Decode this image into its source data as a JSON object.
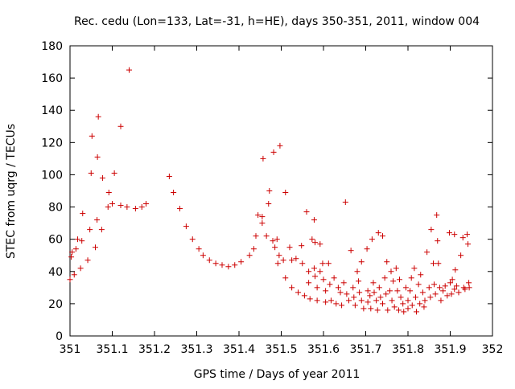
{
  "chart_data": {
    "type": "scatter",
    "title": "Rec. cedu (Lon=133, Lat=-31, h=HE), days 350-351, 2011, window 004",
    "xlabel": "GPS time / Days of year 2011",
    "ylabel": "STEC from uqrg / TECUs",
    "xlim": [
      351,
      352
    ],
    "ylim": [
      0,
      180
    ],
    "x_ticks": [
      "351",
      "351.1",
      "351.2",
      "351.3",
      "351.4",
      "351.5",
      "351.6",
      "351.7",
      "351.8",
      "351.9",
      "352"
    ],
    "y_ticks": [
      "0",
      "20",
      "40",
      "60",
      "80",
      "100",
      "120",
      "140",
      "160",
      "180"
    ],
    "grid": false,
    "legend": "none",
    "marker": "+",
    "color": "#cc0000",
    "series": [
      {
        "points": [
          [
            351.0,
            35
          ],
          [
            351.003,
            49
          ],
          [
            351.005,
            52
          ],
          [
            351.01,
            38
          ],
          [
            351.014,
            54
          ],
          [
            351.018,
            60
          ],
          [
            351.025,
            42
          ],
          [
            351.028,
            59
          ],
          [
            351.03,
            76
          ],
          [
            351.042,
            47
          ],
          [
            351.047,
            66
          ],
          [
            351.05,
            101
          ],
          [
            351.052,
            124
          ],
          [
            351.06,
            55
          ],
          [
            351.064,
            72
          ],
          [
            351.065,
            111
          ],
          [
            351.067,
            136
          ],
          [
            351.075,
            66
          ],
          [
            351.077,
            98
          ],
          [
            351.09,
            80
          ],
          [
            351.092,
            89
          ],
          [
            351.1,
            82
          ],
          [
            351.105,
            101
          ],
          [
            351.12,
            130
          ],
          [
            351.12,
            81
          ],
          [
            351.135,
            80
          ],
          [
            351.14,
            165
          ],
          [
            351.155,
            79
          ],
          [
            351.17,
            80
          ],
          [
            351.18,
            82
          ],
          [
            351.235,
            99
          ],
          [
            351.245,
            89
          ],
          [
            351.26,
            79
          ],
          [
            351.275,
            68
          ],
          [
            351.29,
            60
          ],
          [
            351.305,
            54
          ],
          [
            351.315,
            50
          ],
          [
            351.33,
            47
          ],
          [
            351.345,
            45
          ],
          [
            351.36,
            44
          ],
          [
            351.375,
            43
          ],
          [
            351.39,
            44
          ],
          [
            351.405,
            46
          ],
          [
            351.425,
            50
          ],
          [
            351.435,
            54
          ],
          [
            351.44,
            62
          ],
          [
            351.445,
            75
          ],
          [
            351.455,
            74
          ],
          [
            351.455,
            70
          ],
          [
            351.457,
            110
          ],
          [
            351.465,
            62
          ],
          [
            351.47,
            82
          ],
          [
            351.472,
            90
          ],
          [
            351.48,
            59
          ],
          [
            351.482,
            114
          ],
          [
            351.485,
            55
          ],
          [
            351.49,
            60
          ],
          [
            351.492,
            45
          ],
          [
            351.495,
            50
          ],
          [
            351.497,
            118
          ],
          [
            351.505,
            47
          ],
          [
            351.51,
            89
          ],
          [
            351.51,
            36
          ],
          [
            351.52,
            55
          ],
          [
            351.525,
            47
          ],
          [
            351.525,
            30
          ],
          [
            351.535,
            48
          ],
          [
            351.54,
            27
          ],
          [
            351.548,
            56
          ],
          [
            351.55,
            45
          ],
          [
            351.555,
            25
          ],
          [
            351.56,
            77
          ],
          [
            351.565,
            40
          ],
          [
            351.565,
            33
          ],
          [
            351.568,
            23
          ],
          [
            351.573,
            60
          ],
          [
            351.578,
            72
          ],
          [
            351.578,
            42
          ],
          [
            351.58,
            58
          ],
          [
            351.58,
            37
          ],
          [
            351.585,
            30
          ],
          [
            351.585,
            22
          ],
          [
            351.592,
            57
          ],
          [
            351.592,
            40
          ],
          [
            351.598,
            45
          ],
          [
            351.6,
            35
          ],
          [
            351.605,
            28
          ],
          [
            351.605,
            21
          ],
          [
            351.612,
            45
          ],
          [
            351.615,
            32
          ],
          [
            351.618,
            22
          ],
          [
            351.625,
            36
          ],
          [
            351.63,
            20
          ],
          [
            351.635,
            30
          ],
          [
            351.64,
            27
          ],
          [
            351.643,
            19
          ],
          [
            351.648,
            33
          ],
          [
            351.652,
            83
          ],
          [
            351.655,
            26
          ],
          [
            351.66,
            22
          ],
          [
            351.665,
            53
          ],
          [
            351.67,
            30
          ],
          [
            351.672,
            24
          ],
          [
            351.675,
            19
          ],
          [
            351.68,
            40
          ],
          [
            351.683,
            34
          ],
          [
            351.685,
            27
          ],
          [
            351.69,
            46
          ],
          [
            351.69,
            22
          ],
          [
            351.695,
            17
          ],
          [
            351.703,
            54
          ],
          [
            351.705,
            28
          ],
          [
            351.705,
            21
          ],
          [
            351.71,
            25
          ],
          [
            351.712,
            17
          ],
          [
            351.715,
            60
          ],
          [
            351.718,
            33
          ],
          [
            351.72,
            27
          ],
          [
            351.725,
            22
          ],
          [
            351.728,
            16
          ],
          [
            351.73,
            64
          ],
          [
            351.732,
            30
          ],
          [
            351.735,
            24
          ],
          [
            351.74,
            62
          ],
          [
            351.74,
            20
          ],
          [
            351.745,
            36
          ],
          [
            351.748,
            26
          ],
          [
            351.75,
            46
          ],
          [
            351.752,
            16
          ],
          [
            351.757,
            28
          ],
          [
            351.76,
            40
          ],
          [
            351.762,
            22
          ],
          [
            351.765,
            34
          ],
          [
            351.768,
            18
          ],
          [
            351.772,
            42
          ],
          [
            351.775,
            28
          ],
          [
            351.778,
            16
          ],
          [
            351.78,
            35
          ],
          [
            351.783,
            24
          ],
          [
            351.788,
            20
          ],
          [
            351.79,
            15
          ],
          [
            351.795,
            30
          ],
          [
            351.8,
            22
          ],
          [
            351.8,
            17
          ],
          [
            351.805,
            28
          ],
          [
            351.808,
            36
          ],
          [
            351.81,
            19
          ],
          [
            351.815,
            42
          ],
          [
            351.818,
            24
          ],
          [
            351.82,
            15
          ],
          [
            351.825,
            32
          ],
          [
            351.828,
            20
          ],
          [
            351.83,
            38
          ],
          [
            351.835,
            27
          ],
          [
            351.838,
            18
          ],
          [
            351.84,
            22
          ],
          [
            351.845,
            52
          ],
          [
            351.85,
            30
          ],
          [
            351.853,
            24
          ],
          [
            351.855,
            66
          ],
          [
            351.86,
            45
          ],
          [
            351.862,
            32
          ],
          [
            351.865,
            26
          ],
          [
            351.868,
            75
          ],
          [
            351.87,
            59
          ],
          [
            351.872,
            45
          ],
          [
            351.875,
            30
          ],
          [
            351.878,
            22
          ],
          [
            351.883,
            28
          ],
          [
            351.888,
            31
          ],
          [
            351.893,
            25
          ],
          [
            351.898,
            64
          ],
          [
            351.9,
            33
          ],
          [
            351.903,
            26
          ],
          [
            351.905,
            35
          ],
          [
            351.91,
            63
          ],
          [
            351.91,
            29
          ],
          [
            351.912,
            41
          ],
          [
            351.915,
            31
          ],
          [
            351.92,
            27
          ],
          [
            351.925,
            50
          ],
          [
            351.93,
            61
          ],
          [
            351.932,
            30
          ],
          [
            351.935,
            29
          ],
          [
            351.94,
            63
          ],
          [
            351.942,
            57
          ],
          [
            351.944,
            33
          ],
          [
            351.945,
            30
          ]
        ]
      }
    ]
  }
}
